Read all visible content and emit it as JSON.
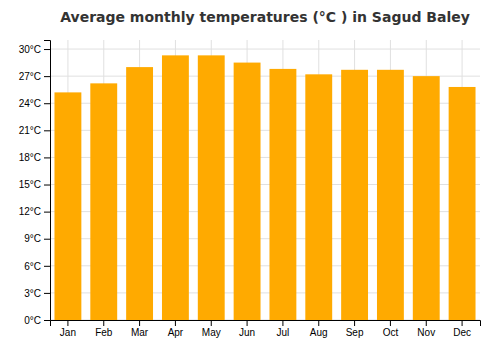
{
  "chart_data": {
    "type": "bar",
    "title": "Average monthly temperatures (°C ) in Sagud Baley",
    "categories": [
      "Jan",
      "Feb",
      "Mar",
      "Apr",
      "May",
      "Jun",
      "Jul",
      "Aug",
      "Sep",
      "Oct",
      "Nov",
      "Dec"
    ],
    "values": [
      25.2,
      26.2,
      28.0,
      29.3,
      29.3,
      28.5,
      27.8,
      27.2,
      27.7,
      27.7,
      27.0,
      25.8
    ],
    "color": "#FFAA00",
    "ylim": [
      0,
      31
    ],
    "yticks": [
      {
        "value": 0,
        "label": "0°C"
      },
      {
        "value": 3,
        "label": "3°C"
      },
      {
        "value": 6,
        "label": "6°C"
      },
      {
        "value": 9,
        "label": "9°C"
      },
      {
        "value": 12,
        "label": "12°C"
      },
      {
        "value": 15,
        "label": "15°C"
      },
      {
        "value": 18,
        "label": "18°C"
      },
      {
        "value": 21,
        "label": "21°C"
      },
      {
        "value": 24,
        "label": "24°C"
      },
      {
        "value": 27,
        "label": "27°C"
      },
      {
        "value": 30,
        "label": "30°C"
      }
    ],
    "grid": true
  }
}
